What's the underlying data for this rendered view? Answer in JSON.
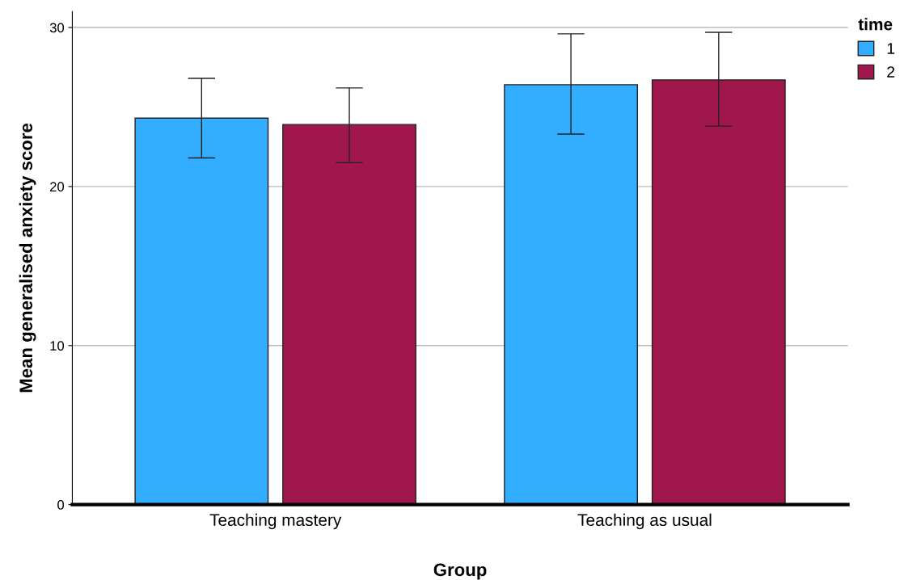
{
  "chart_data": {
    "type": "bar",
    "xlabel": "Group",
    "ylabel": "Mean generalised anxiety score",
    "legend_title": "time",
    "categories": [
      "Teaching mastery",
      "Teaching as usual"
    ],
    "series": [
      {
        "name": "1",
        "color": "#33adff",
        "values": [
          24.3,
          26.4
        ],
        "errors": [
          [
            21.8,
            26.8
          ],
          [
            23.3,
            29.6
          ]
        ]
      },
      {
        "name": "2",
        "color": "#a0184b",
        "values": [
          23.9,
          26.7
        ],
        "errors": [
          [
            21.5,
            26.2
          ],
          [
            23.8,
            29.7
          ]
        ]
      }
    ],
    "ylim": [
      0,
      31
    ],
    "yticks": [
      0,
      10,
      20,
      30
    ],
    "grid": "y",
    "legend": "top right"
  }
}
